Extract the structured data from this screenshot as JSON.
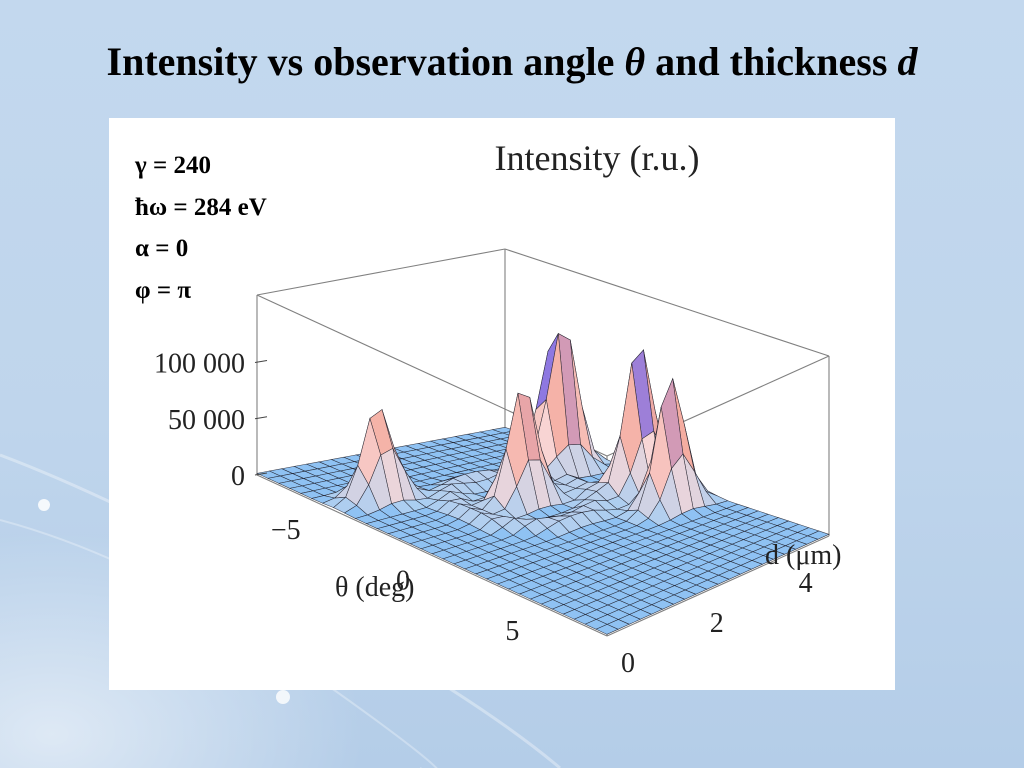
{
  "slide": {
    "title_prefix": "Intensity vs observation angle ",
    "title_theta": "θ",
    "title_mid": " and thickness ",
    "title_d": "d"
  },
  "params": [
    "γ = 240",
    "ħω = 284 eV",
    "α = 0",
    "φ = π"
  ],
  "chart_data": {
    "type": "surface3d",
    "title": "Intensity (r.u.)",
    "xlabel": "θ (deg)",
    "ylabel": "d (μm)",
    "zlabel": "Intensity (r.u.)",
    "x_ticks": [
      "−5",
      "0",
      "5"
    ],
    "y_ticks": [
      "0",
      "2",
      "4"
    ],
    "z_ticks": [
      "0",
      "50 000",
      "100 000"
    ],
    "xlim": [
      -8,
      8
    ],
    "ylim": [
      0,
      5
    ],
    "zlim": [
      0,
      160000
    ],
    "peaks": [
      {
        "theta": -4.4,
        "d": 0.9,
        "intensity": 85000
      },
      {
        "theta": -3.2,
        "d": 4.1,
        "intensity": 150000
      },
      {
        "theta": -1.5,
        "d": 2.6,
        "intensity": 105000
      },
      {
        "theta": 0.0,
        "d": 4.4,
        "intensity": 130000
      },
      {
        "theta": 2.0,
        "d": 4.2,
        "intensity": 115000
      }
    ],
    "colors": {
      "surface_low": "#9cc8f2",
      "surface_high": "#f6c8b8",
      "peak_top": "#8b79e0",
      "mesh": "#1a1a2a"
    }
  }
}
